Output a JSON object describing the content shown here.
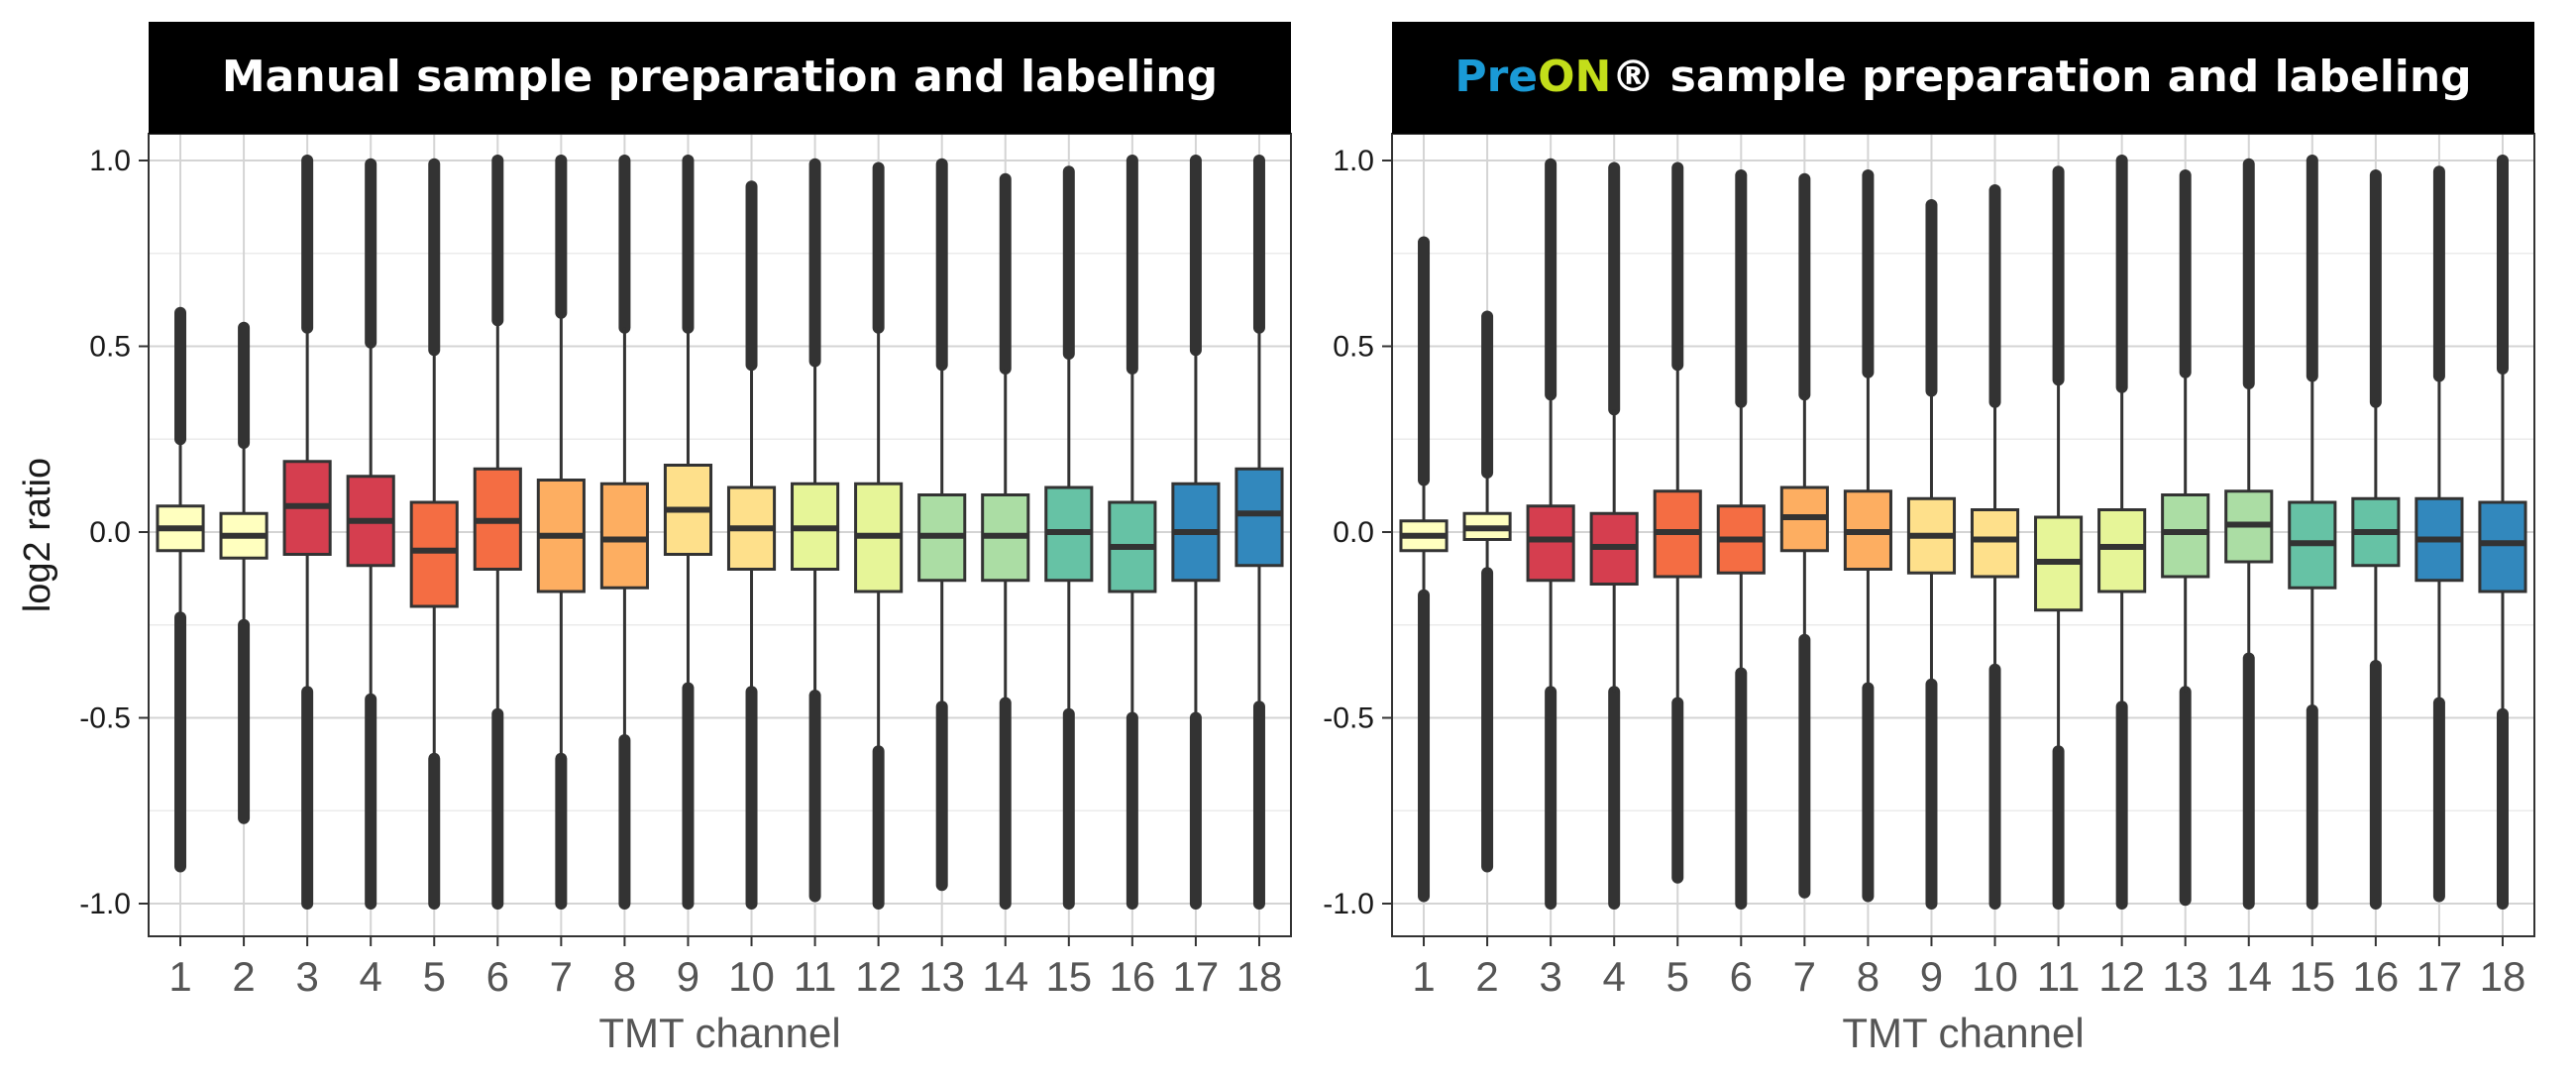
{
  "chart_data": [
    {
      "type": "box",
      "title": "Manual sample preparation and labeling",
      "title_parts": [
        {
          "text": "Manual sample preparation and labeling",
          "color": "#ffffff"
        }
      ],
      "xlabel": "TMT channel",
      "ylabel": "log2 ratio",
      "ylim": [
        -1.1,
        1.1
      ],
      "yticks": [
        1.0,
        0.5,
        0.0,
        -0.5,
        -1.0
      ],
      "ytick_labels": [
        "1.0",
        "0.5",
        "0.0",
        "-0.5",
        "-1.0"
      ],
      "grid": true,
      "categories": [
        "1",
        "2",
        "3",
        "4",
        "5",
        "6",
        "7",
        "8",
        "9",
        "10",
        "11",
        "12",
        "13",
        "14",
        "15",
        "16",
        "17",
        "18"
      ],
      "boxes": [
        {
          "median": 0.01,
          "q1": -0.05,
          "q3": 0.07,
          "whisker_low": -0.23,
          "whisker_high": 0.25,
          "outlier_high": 0.59,
          "outlier_low": -0.9,
          "color": "#ffffbf"
        },
        {
          "median": -0.01,
          "q1": -0.07,
          "q3": 0.05,
          "whisker_low": -0.25,
          "whisker_high": 0.24,
          "outlier_high": 0.55,
          "outlier_low": -0.77,
          "color": "#ffffbf"
        },
        {
          "median": 0.07,
          "q1": -0.06,
          "q3": 0.19,
          "whisker_low": -0.43,
          "whisker_high": 0.55,
          "outlier_high": 1.0,
          "outlier_low": -1.0,
          "color": "#d53e4f"
        },
        {
          "median": 0.03,
          "q1": -0.09,
          "q3": 0.15,
          "whisker_low": -0.45,
          "whisker_high": 0.51,
          "outlier_high": 0.99,
          "outlier_low": -1.0,
          "color": "#d53e4f"
        },
        {
          "median": -0.05,
          "q1": -0.2,
          "q3": 0.08,
          "whisker_low": -0.61,
          "whisker_high": 0.49,
          "outlier_high": 0.99,
          "outlier_low": -1.0,
          "color": "#f46d43"
        },
        {
          "median": 0.03,
          "q1": -0.1,
          "q3": 0.17,
          "whisker_low": -0.49,
          "whisker_high": 0.57,
          "outlier_high": 1.0,
          "outlier_low": -1.0,
          "color": "#f46d43"
        },
        {
          "median": -0.01,
          "q1": -0.16,
          "q3": 0.14,
          "whisker_low": -0.61,
          "whisker_high": 0.59,
          "outlier_high": 1.0,
          "outlier_low": -1.0,
          "color": "#fdae61"
        },
        {
          "median": -0.02,
          "q1": -0.15,
          "q3": 0.13,
          "whisker_low": -0.56,
          "whisker_high": 0.55,
          "outlier_high": 1.0,
          "outlier_low": -1.0,
          "color": "#fdae61"
        },
        {
          "median": 0.06,
          "q1": -0.06,
          "q3": 0.18,
          "whisker_low": -0.42,
          "whisker_high": 0.55,
          "outlier_high": 1.0,
          "outlier_low": -1.0,
          "color": "#fee08b"
        },
        {
          "median": 0.01,
          "q1": -0.1,
          "q3": 0.12,
          "whisker_low": -0.43,
          "whisker_high": 0.45,
          "outlier_high": 0.93,
          "outlier_low": -1.0,
          "color": "#fee08b"
        },
        {
          "median": 0.01,
          "q1": -0.1,
          "q3": 0.13,
          "whisker_low": -0.44,
          "whisker_high": 0.46,
          "outlier_high": 0.99,
          "outlier_low": -0.98,
          "color": "#e6f598"
        },
        {
          "median": -0.01,
          "q1": -0.16,
          "q3": 0.13,
          "whisker_low": -0.59,
          "whisker_high": 0.55,
          "outlier_high": 0.98,
          "outlier_low": -1.0,
          "color": "#e6f598"
        },
        {
          "median": -0.01,
          "q1": -0.13,
          "q3": 0.1,
          "whisker_low": -0.47,
          "whisker_high": 0.45,
          "outlier_high": 0.99,
          "outlier_low": -0.95,
          "color": "#abdda4"
        },
        {
          "median": -0.01,
          "q1": -0.13,
          "q3": 0.1,
          "whisker_low": -0.46,
          "whisker_high": 0.44,
          "outlier_high": 0.95,
          "outlier_low": -1.0,
          "color": "#abdda4"
        },
        {
          "median": 0.0,
          "q1": -0.13,
          "q3": 0.12,
          "whisker_low": -0.49,
          "whisker_high": 0.48,
          "outlier_high": 0.97,
          "outlier_low": -1.0,
          "color": "#66c2a5"
        },
        {
          "median": -0.04,
          "q1": -0.16,
          "q3": 0.08,
          "whisker_low": -0.5,
          "whisker_high": 0.44,
          "outlier_high": 1.0,
          "outlier_low": -1.0,
          "color": "#66c2a5"
        },
        {
          "median": 0.0,
          "q1": -0.13,
          "q3": 0.13,
          "whisker_low": -0.5,
          "whisker_high": 0.49,
          "outlier_high": 1.0,
          "outlier_low": -1.0,
          "color": "#3288bd"
        },
        {
          "median": 0.05,
          "q1": -0.09,
          "q3": 0.17,
          "whisker_low": -0.47,
          "whisker_high": 0.55,
          "outlier_high": 1.0,
          "outlier_low": -1.0,
          "color": "#3288bd"
        }
      ]
    },
    {
      "type": "box",
      "title": "PreON® sample preparation and labeling",
      "title_parts": [
        {
          "text": "Pre",
          "color": "#1a9ad6"
        },
        {
          "text": "ON",
          "color": "#c3de1a"
        },
        {
          "text": "®",
          "color": "#ffffff"
        },
        {
          "text": " sample preparation and labeling",
          "color": "#ffffff"
        }
      ],
      "xlabel": "TMT channel",
      "ylabel": "",
      "ylim": [
        -1.1,
        1.1
      ],
      "yticks": [
        1.0,
        0.5,
        0.0,
        -0.5,
        -1.0
      ],
      "ytick_labels": [
        "1.0",
        "0.5",
        "0.0",
        "-0.5",
        "-1.0"
      ],
      "grid": true,
      "categories": [
        "1",
        "2",
        "3",
        "4",
        "5",
        "6",
        "7",
        "8",
        "9",
        "10",
        "11",
        "12",
        "13",
        "14",
        "15",
        "16",
        "17",
        "18"
      ],
      "boxes": [
        {
          "median": -0.01,
          "q1": -0.05,
          "q3": 0.03,
          "whisker_low": -0.17,
          "whisker_high": 0.14,
          "outlier_high": 0.78,
          "outlier_low": -0.98,
          "color": "#ffffbf"
        },
        {
          "median": 0.01,
          "q1": -0.02,
          "q3": 0.05,
          "whisker_low": -0.11,
          "whisker_high": 0.16,
          "outlier_high": 0.58,
          "outlier_low": -0.9,
          "color": "#ffffbf"
        },
        {
          "median": -0.02,
          "q1": -0.13,
          "q3": 0.07,
          "whisker_low": -0.43,
          "whisker_high": 0.37,
          "outlier_high": 0.99,
          "outlier_low": -1.0,
          "color": "#d53e4f"
        },
        {
          "median": -0.04,
          "q1": -0.14,
          "q3": 0.05,
          "whisker_low": -0.43,
          "whisker_high": 0.33,
          "outlier_high": 0.98,
          "outlier_low": -1.0,
          "color": "#d53e4f"
        },
        {
          "median": 0.0,
          "q1": -0.12,
          "q3": 0.11,
          "whisker_low": -0.46,
          "whisker_high": 0.45,
          "outlier_high": 0.98,
          "outlier_low": -0.93,
          "color": "#f46d43"
        },
        {
          "median": -0.02,
          "q1": -0.11,
          "q3": 0.07,
          "whisker_low": -0.38,
          "whisker_high": 0.35,
          "outlier_high": 0.96,
          "outlier_low": -1.0,
          "color": "#f46d43"
        },
        {
          "median": 0.04,
          "q1": -0.05,
          "q3": 0.12,
          "whisker_low": -0.29,
          "whisker_high": 0.37,
          "outlier_high": 0.95,
          "outlier_low": -0.97,
          "color": "#fdae61"
        },
        {
          "median": 0.0,
          "q1": -0.1,
          "q3": 0.11,
          "whisker_low": -0.42,
          "whisker_high": 0.43,
          "outlier_high": 0.96,
          "outlier_low": -0.98,
          "color": "#fdae61"
        },
        {
          "median": -0.01,
          "q1": -0.11,
          "q3": 0.09,
          "whisker_low": -0.41,
          "whisker_high": 0.38,
          "outlier_high": 0.88,
          "outlier_low": -1.0,
          "color": "#fee08b"
        },
        {
          "median": -0.02,
          "q1": -0.12,
          "q3": 0.06,
          "whisker_low": -0.37,
          "whisker_high": 0.35,
          "outlier_high": 0.92,
          "outlier_low": -1.0,
          "color": "#fee08b"
        },
        {
          "median": -0.08,
          "q1": -0.21,
          "q3": 0.04,
          "whisker_low": -0.59,
          "whisker_high": 0.41,
          "outlier_high": 0.97,
          "outlier_low": -1.0,
          "color": "#e6f598"
        },
        {
          "median": -0.04,
          "q1": -0.16,
          "q3": 0.06,
          "whisker_low": -0.47,
          "whisker_high": 0.39,
          "outlier_high": 1.0,
          "outlier_low": -1.0,
          "color": "#e6f598"
        },
        {
          "median": 0.0,
          "q1": -0.12,
          "q3": 0.1,
          "whisker_low": -0.43,
          "whisker_high": 0.43,
          "outlier_high": 0.96,
          "outlier_low": -0.99,
          "color": "#abdda4"
        },
        {
          "median": 0.02,
          "q1": -0.08,
          "q3": 0.11,
          "whisker_low": -0.34,
          "whisker_high": 0.4,
          "outlier_high": 0.99,
          "outlier_low": -1.0,
          "color": "#abdda4"
        },
        {
          "median": -0.03,
          "q1": -0.15,
          "q3": 0.08,
          "whisker_low": -0.48,
          "whisker_high": 0.42,
          "outlier_high": 1.0,
          "outlier_low": -1.0,
          "color": "#66c2a5"
        },
        {
          "median": 0.0,
          "q1": -0.09,
          "q3": 0.09,
          "whisker_low": -0.36,
          "whisker_high": 0.35,
          "outlier_high": 0.96,
          "outlier_low": -1.0,
          "color": "#66c2a5"
        },
        {
          "median": -0.02,
          "q1": -0.13,
          "q3": 0.09,
          "whisker_low": -0.46,
          "whisker_high": 0.42,
          "outlier_high": 0.97,
          "outlier_low": -0.98,
          "color": "#3288bd"
        },
        {
          "median": -0.03,
          "q1": -0.16,
          "q3": 0.08,
          "whisker_low": -0.49,
          "whisker_high": 0.44,
          "outlier_high": 1.0,
          "outlier_low": -1.0,
          "color": "#3288bd"
        }
      ]
    }
  ]
}
